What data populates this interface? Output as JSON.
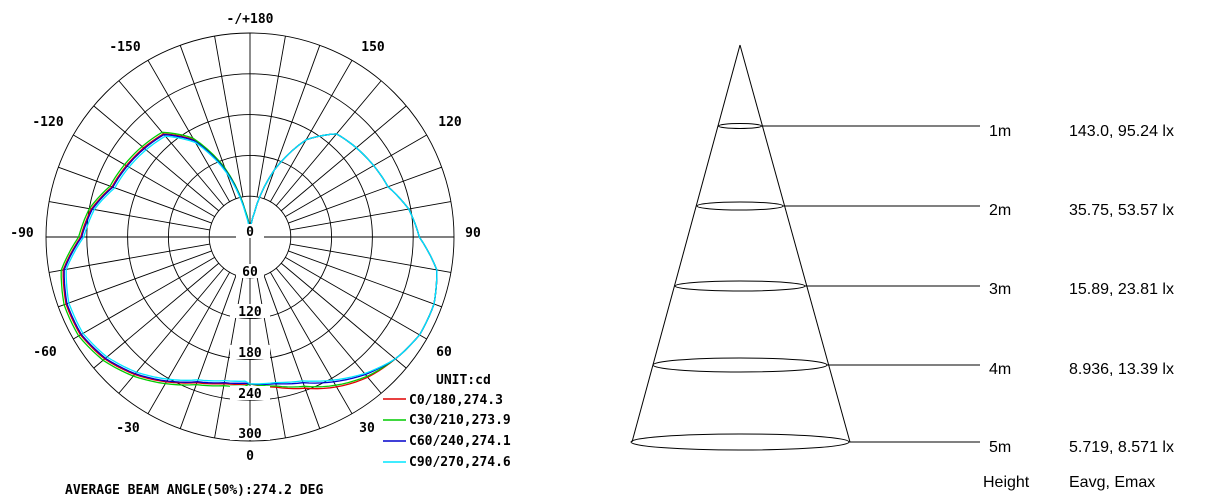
{
  "polar": {
    "angle_labels": {
      "top": "-/+180",
      "neg150": "-150",
      "pos150": "150",
      "neg120": "-120",
      "pos120": "120",
      "neg90": "-90",
      "pos90": "90",
      "neg60": "-60",
      "pos60": "60",
      "neg30": "-30",
      "pos30": "30",
      "bottom": "0"
    },
    "radial_labels": [
      "0",
      "60",
      "120",
      "180",
      "240",
      "300"
    ],
    "unit": "UNIT:cd",
    "legend": [
      {
        "label": "C0/180,274.3",
        "color": "#e00000"
      },
      {
        "label": "C30/210,273.9",
        "color": "#00cc00"
      },
      {
        "label": "C60/240,274.1",
        "color": "#0000cc"
      },
      {
        "label": "C90/270,274.6",
        "color": "#00e5ff"
      }
    ],
    "footer": "AVERAGE BEAM ANGLE(50%):274.2 DEG"
  },
  "cone": {
    "rows": [
      {
        "height": "1m",
        "value": "143.0, 95.24 lx"
      },
      {
        "height": "2m",
        "value": "35.75, 53.57 lx"
      },
      {
        "height": "3m",
        "value": "15.89, 23.81 lx"
      },
      {
        "height": "4m",
        "value": "8.936, 13.39 lx"
      },
      {
        "height": "5m",
        "value": "5.719, 8.571 lx"
      }
    ],
    "col_height": "Height",
    "col_values": "Eavg, Emax"
  }
}
